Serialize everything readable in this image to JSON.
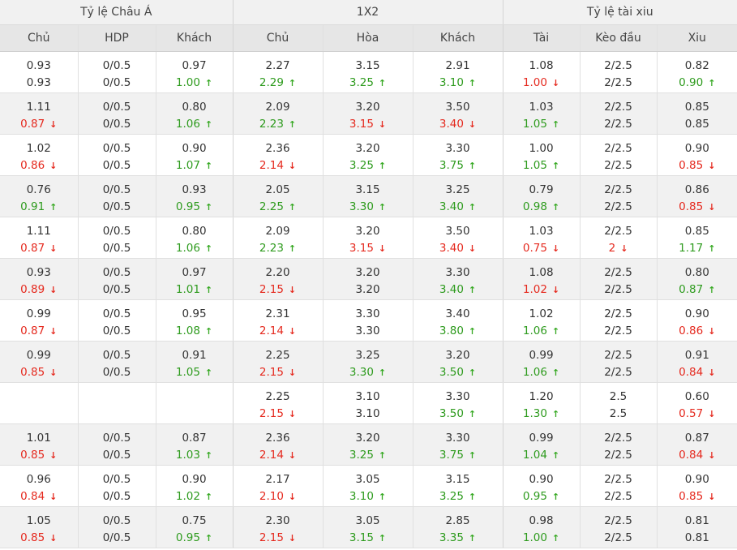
{
  "groups": {
    "asian": "Tỷ lệ Châu Á",
    "x12": "1X2",
    "taixiu": "Tỷ lệ tài xiu"
  },
  "columns": {
    "a_home": "Chủ",
    "a_hdp": "HDP",
    "a_away": "Khách",
    "x_home": "Chủ",
    "x_draw": "Hòa",
    "x_away": "Khách",
    "t_over": "Tài",
    "t_line": "Kèo đầu",
    "t_under": "Xiu"
  },
  "arrows": {
    "up": "🡑",
    "down": "🡓"
  },
  "rows": [
    {
      "c": [
        [
          {
            "v": "0.93",
            "d": ""
          },
          {
            "v": "0.93",
            "d": ""
          }
        ],
        [
          {
            "v": "0/0.5",
            "d": ""
          },
          {
            "v": "0/0.5",
            "d": ""
          }
        ],
        [
          {
            "v": "0.97",
            "d": ""
          },
          {
            "v": "1.00",
            "d": "up"
          }
        ],
        [
          {
            "v": "2.27",
            "d": ""
          },
          {
            "v": "2.29",
            "d": "up"
          }
        ],
        [
          {
            "v": "3.15",
            "d": ""
          },
          {
            "v": "3.25",
            "d": "up"
          }
        ],
        [
          {
            "v": "2.91",
            "d": ""
          },
          {
            "v": "3.10",
            "d": "up"
          }
        ],
        [
          {
            "v": "1.08",
            "d": ""
          },
          {
            "v": "1.00",
            "d": "down"
          }
        ],
        [
          {
            "v": "2/2.5",
            "d": ""
          },
          {
            "v": "2/2.5",
            "d": ""
          }
        ],
        [
          {
            "v": "0.82",
            "d": ""
          },
          {
            "v": "0.90",
            "d": "up"
          }
        ]
      ]
    },
    {
      "c": [
        [
          {
            "v": "1.11",
            "d": ""
          },
          {
            "v": "0.87",
            "d": "down"
          }
        ],
        [
          {
            "v": "0/0.5",
            "d": ""
          },
          {
            "v": "0/0.5",
            "d": ""
          }
        ],
        [
          {
            "v": "0.80",
            "d": ""
          },
          {
            "v": "1.06",
            "d": "up"
          }
        ],
        [
          {
            "v": "2.09",
            "d": ""
          },
          {
            "v": "2.23",
            "d": "up"
          }
        ],
        [
          {
            "v": "3.20",
            "d": ""
          },
          {
            "v": "3.15",
            "d": "down"
          }
        ],
        [
          {
            "v": "3.50",
            "d": ""
          },
          {
            "v": "3.40",
            "d": "down"
          }
        ],
        [
          {
            "v": "1.03",
            "d": ""
          },
          {
            "v": "1.05",
            "d": "up"
          }
        ],
        [
          {
            "v": "2/2.5",
            "d": ""
          },
          {
            "v": "2/2.5",
            "d": ""
          }
        ],
        [
          {
            "v": "0.85",
            "d": ""
          },
          {
            "v": "0.85",
            "d": ""
          }
        ]
      ]
    },
    {
      "c": [
        [
          {
            "v": "1.02",
            "d": ""
          },
          {
            "v": "0.86",
            "d": "down"
          }
        ],
        [
          {
            "v": "0/0.5",
            "d": ""
          },
          {
            "v": "0/0.5",
            "d": ""
          }
        ],
        [
          {
            "v": "0.90",
            "d": ""
          },
          {
            "v": "1.07",
            "d": "up"
          }
        ],
        [
          {
            "v": "2.36",
            "d": ""
          },
          {
            "v": "2.14",
            "d": "down"
          }
        ],
        [
          {
            "v": "3.20",
            "d": ""
          },
          {
            "v": "3.25",
            "d": "up"
          }
        ],
        [
          {
            "v": "3.30",
            "d": ""
          },
          {
            "v": "3.75",
            "d": "up"
          }
        ],
        [
          {
            "v": "1.00",
            "d": ""
          },
          {
            "v": "1.05",
            "d": "up"
          }
        ],
        [
          {
            "v": "2/2.5",
            "d": ""
          },
          {
            "v": "2/2.5",
            "d": ""
          }
        ],
        [
          {
            "v": "0.90",
            "d": ""
          },
          {
            "v": "0.85",
            "d": "down"
          }
        ]
      ]
    },
    {
      "c": [
        [
          {
            "v": "0.76",
            "d": ""
          },
          {
            "v": "0.91",
            "d": "up"
          }
        ],
        [
          {
            "v": "0/0.5",
            "d": ""
          },
          {
            "v": "0/0.5",
            "d": ""
          }
        ],
        [
          {
            "v": "0.93",
            "d": ""
          },
          {
            "v": "0.95",
            "d": "up"
          }
        ],
        [
          {
            "v": "2.05",
            "d": ""
          },
          {
            "v": "2.25",
            "d": "up"
          }
        ],
        [
          {
            "v": "3.15",
            "d": ""
          },
          {
            "v": "3.30",
            "d": "up"
          }
        ],
        [
          {
            "v": "3.25",
            "d": ""
          },
          {
            "v": "3.40",
            "d": "up"
          }
        ],
        [
          {
            "v": "0.79",
            "d": ""
          },
          {
            "v": "0.98",
            "d": "up"
          }
        ],
        [
          {
            "v": "2/2.5",
            "d": ""
          },
          {
            "v": "2/2.5",
            "d": ""
          }
        ],
        [
          {
            "v": "0.86",
            "d": ""
          },
          {
            "v": "0.85",
            "d": "down"
          }
        ]
      ]
    },
    {
      "c": [
        [
          {
            "v": "1.11",
            "d": ""
          },
          {
            "v": "0.87",
            "d": "down"
          }
        ],
        [
          {
            "v": "0/0.5",
            "d": ""
          },
          {
            "v": "0/0.5",
            "d": ""
          }
        ],
        [
          {
            "v": "0.80",
            "d": ""
          },
          {
            "v": "1.06",
            "d": "up"
          }
        ],
        [
          {
            "v": "2.09",
            "d": ""
          },
          {
            "v": "2.23",
            "d": "up"
          }
        ],
        [
          {
            "v": "3.20",
            "d": ""
          },
          {
            "v": "3.15",
            "d": "down"
          }
        ],
        [
          {
            "v": "3.50",
            "d": ""
          },
          {
            "v": "3.40",
            "d": "down"
          }
        ],
        [
          {
            "v": "1.03",
            "d": ""
          },
          {
            "v": "0.75",
            "d": "down"
          }
        ],
        [
          {
            "v": "2/2.5",
            "d": ""
          },
          {
            "v": "2",
            "d": "down"
          }
        ],
        [
          {
            "v": "0.85",
            "d": ""
          },
          {
            "v": "1.17",
            "d": "up"
          }
        ]
      ]
    },
    {
      "c": [
        [
          {
            "v": "0.93",
            "d": ""
          },
          {
            "v": "0.89",
            "d": "down"
          }
        ],
        [
          {
            "v": "0/0.5",
            "d": ""
          },
          {
            "v": "0/0.5",
            "d": ""
          }
        ],
        [
          {
            "v": "0.97",
            "d": ""
          },
          {
            "v": "1.01",
            "d": "up"
          }
        ],
        [
          {
            "v": "2.20",
            "d": ""
          },
          {
            "v": "2.15",
            "d": "down"
          }
        ],
        [
          {
            "v": "3.20",
            "d": ""
          },
          {
            "v": "3.20",
            "d": ""
          }
        ],
        [
          {
            "v": "3.30",
            "d": ""
          },
          {
            "v": "3.40",
            "d": "up"
          }
        ],
        [
          {
            "v": "1.08",
            "d": ""
          },
          {
            "v": "1.02",
            "d": "down"
          }
        ],
        [
          {
            "v": "2/2.5",
            "d": ""
          },
          {
            "v": "2/2.5",
            "d": ""
          }
        ],
        [
          {
            "v": "0.80",
            "d": ""
          },
          {
            "v": "0.87",
            "d": "up"
          }
        ]
      ]
    },
    {
      "c": [
        [
          {
            "v": "0.99",
            "d": ""
          },
          {
            "v": "0.87",
            "d": "down"
          }
        ],
        [
          {
            "v": "0/0.5",
            "d": ""
          },
          {
            "v": "0/0.5",
            "d": ""
          }
        ],
        [
          {
            "v": "0.95",
            "d": ""
          },
          {
            "v": "1.08",
            "d": "up"
          }
        ],
        [
          {
            "v": "2.31",
            "d": ""
          },
          {
            "v": "2.14",
            "d": "down"
          }
        ],
        [
          {
            "v": "3.30",
            "d": ""
          },
          {
            "v": "3.30",
            "d": ""
          }
        ],
        [
          {
            "v": "3.40",
            "d": ""
          },
          {
            "v": "3.80",
            "d": "up"
          }
        ],
        [
          {
            "v": "1.02",
            "d": ""
          },
          {
            "v": "1.06",
            "d": "up"
          }
        ],
        [
          {
            "v": "2/2.5",
            "d": ""
          },
          {
            "v": "2/2.5",
            "d": ""
          }
        ],
        [
          {
            "v": "0.90",
            "d": ""
          },
          {
            "v": "0.86",
            "d": "down"
          }
        ]
      ]
    },
    {
      "c": [
        [
          {
            "v": "0.99",
            "d": ""
          },
          {
            "v": "0.85",
            "d": "down"
          }
        ],
        [
          {
            "v": "0/0.5",
            "d": ""
          },
          {
            "v": "0/0.5",
            "d": ""
          }
        ],
        [
          {
            "v": "0.91",
            "d": ""
          },
          {
            "v": "1.05",
            "d": "up"
          }
        ],
        [
          {
            "v": "2.25",
            "d": ""
          },
          {
            "v": "2.15",
            "d": "down"
          }
        ],
        [
          {
            "v": "3.25",
            "d": ""
          },
          {
            "v": "3.30",
            "d": "up"
          }
        ],
        [
          {
            "v": "3.20",
            "d": ""
          },
          {
            "v": "3.50",
            "d": "up"
          }
        ],
        [
          {
            "v": "0.99",
            "d": ""
          },
          {
            "v": "1.06",
            "d": "up"
          }
        ],
        [
          {
            "v": "2/2.5",
            "d": ""
          },
          {
            "v": "2/2.5",
            "d": ""
          }
        ],
        [
          {
            "v": "0.91",
            "d": ""
          },
          {
            "v": "0.84",
            "d": "down"
          }
        ]
      ]
    },
    {
      "c": [
        [
          {
            "v": "",
            "d": ""
          },
          {
            "v": "",
            "d": ""
          }
        ],
        [
          {
            "v": "",
            "d": ""
          },
          {
            "v": "",
            "d": ""
          }
        ],
        [
          {
            "v": "",
            "d": ""
          },
          {
            "v": "",
            "d": ""
          }
        ],
        [
          {
            "v": "2.25",
            "d": ""
          },
          {
            "v": "2.15",
            "d": "down"
          }
        ],
        [
          {
            "v": "3.10",
            "d": ""
          },
          {
            "v": "3.10",
            "d": ""
          }
        ],
        [
          {
            "v": "3.30",
            "d": ""
          },
          {
            "v": "3.50",
            "d": "up"
          }
        ],
        [
          {
            "v": "1.20",
            "d": ""
          },
          {
            "v": "1.30",
            "d": "up"
          }
        ],
        [
          {
            "v": "2.5",
            "d": ""
          },
          {
            "v": "2.5",
            "d": ""
          }
        ],
        [
          {
            "v": "0.60",
            "d": ""
          },
          {
            "v": "0.57",
            "d": "down"
          }
        ]
      ]
    },
    {
      "c": [
        [
          {
            "v": "1.01",
            "d": ""
          },
          {
            "v": "0.85",
            "d": "down"
          }
        ],
        [
          {
            "v": "0/0.5",
            "d": ""
          },
          {
            "v": "0/0.5",
            "d": ""
          }
        ],
        [
          {
            "v": "0.87",
            "d": ""
          },
          {
            "v": "1.03",
            "d": "up"
          }
        ],
        [
          {
            "v": "2.36",
            "d": ""
          },
          {
            "v": "2.14",
            "d": "down"
          }
        ],
        [
          {
            "v": "3.20",
            "d": ""
          },
          {
            "v": "3.25",
            "d": "up"
          }
        ],
        [
          {
            "v": "3.30",
            "d": ""
          },
          {
            "v": "3.75",
            "d": "up"
          }
        ],
        [
          {
            "v": "0.99",
            "d": ""
          },
          {
            "v": "1.04",
            "d": "up"
          }
        ],
        [
          {
            "v": "2/2.5",
            "d": ""
          },
          {
            "v": "2/2.5",
            "d": ""
          }
        ],
        [
          {
            "v": "0.87",
            "d": ""
          },
          {
            "v": "0.84",
            "d": "down"
          }
        ]
      ]
    },
    {
      "c": [
        [
          {
            "v": "0.96",
            "d": ""
          },
          {
            "v": "0.84",
            "d": "down"
          }
        ],
        [
          {
            "v": "0/0.5",
            "d": ""
          },
          {
            "v": "0/0.5",
            "d": ""
          }
        ],
        [
          {
            "v": "0.90",
            "d": ""
          },
          {
            "v": "1.02",
            "d": "up"
          }
        ],
        [
          {
            "v": "2.17",
            "d": ""
          },
          {
            "v": "2.10",
            "d": "down"
          }
        ],
        [
          {
            "v": "3.05",
            "d": ""
          },
          {
            "v": "3.10",
            "d": "up"
          }
        ],
        [
          {
            "v": "3.15",
            "d": ""
          },
          {
            "v": "3.25",
            "d": "up"
          }
        ],
        [
          {
            "v": "0.90",
            "d": ""
          },
          {
            "v": "0.95",
            "d": "up"
          }
        ],
        [
          {
            "v": "2/2.5",
            "d": ""
          },
          {
            "v": "2/2.5",
            "d": ""
          }
        ],
        [
          {
            "v": "0.90",
            "d": ""
          },
          {
            "v": "0.85",
            "d": "down"
          }
        ]
      ]
    },
    {
      "c": [
        [
          {
            "v": "1.05",
            "d": ""
          },
          {
            "v": "0.85",
            "d": "down"
          }
        ],
        [
          {
            "v": "0/0.5",
            "d": ""
          },
          {
            "v": "0/0.5",
            "d": ""
          }
        ],
        [
          {
            "v": "0.75",
            "d": ""
          },
          {
            "v": "0.95",
            "d": "up"
          }
        ],
        [
          {
            "v": "2.30",
            "d": ""
          },
          {
            "v": "2.15",
            "d": "down"
          }
        ],
        [
          {
            "v": "3.05",
            "d": ""
          },
          {
            "v": "3.15",
            "d": "up"
          }
        ],
        [
          {
            "v": "2.85",
            "d": ""
          },
          {
            "v": "3.35",
            "d": "up"
          }
        ],
        [
          {
            "v": "0.98",
            "d": ""
          },
          {
            "v": "1.00",
            "d": "up"
          }
        ],
        [
          {
            "v": "2/2.5",
            "d": ""
          },
          {
            "v": "2/2.5",
            "d": ""
          }
        ],
        [
          {
            "v": "0.81",
            "d": ""
          },
          {
            "v": "0.81",
            "d": ""
          }
        ]
      ]
    }
  ]
}
